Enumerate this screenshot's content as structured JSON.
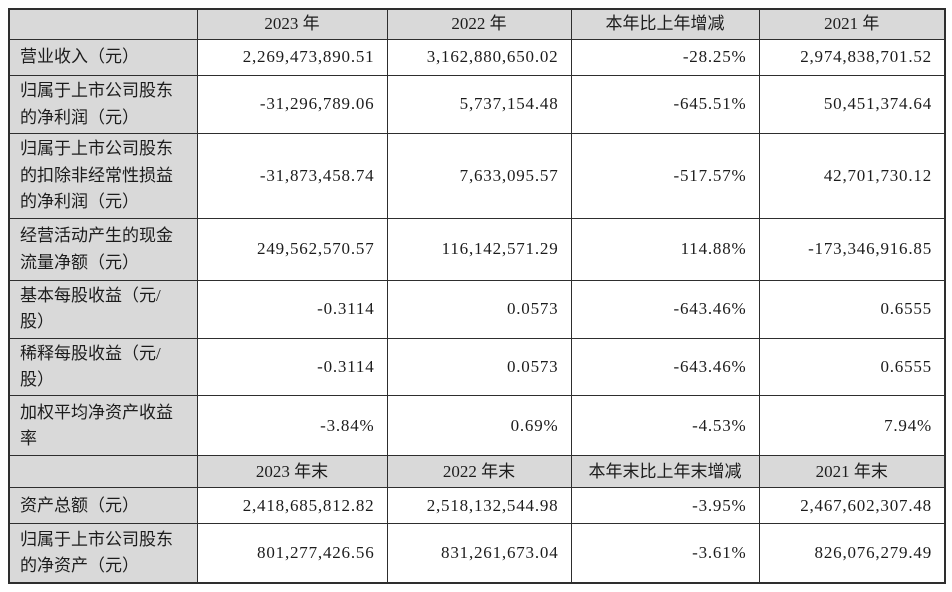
{
  "colors": {
    "header_bg": "#d9d9d9",
    "label_column_bg": "#d9d9d9",
    "cell_bg": "#ffffff",
    "border": "#2e2e2e",
    "text": "#1c1c1c"
  },
  "table": {
    "period_header": {
      "corner": "",
      "col_2023": "2023 年",
      "col_2022": "2022 年",
      "col_change": "本年比上年增减",
      "col_2021": "2021 年"
    },
    "period_rows": [
      {
        "label": "营业收入（元）",
        "values": [
          "2,269,473,890.51",
          "3,162,880,650.02",
          "-28.25%",
          "2,974,838,701.52"
        ]
      },
      {
        "label": "归属于上市公司股东的净利润（元）",
        "values": [
          "-31,296,789.06",
          "5,737,154.48",
          "-645.51%",
          "50,451,374.64"
        ]
      },
      {
        "label": "归属于上市公司股东的扣除非经常性损益的净利润（元）",
        "values": [
          "-31,873,458.74",
          "7,633,095.57",
          "-517.57%",
          "42,701,730.12"
        ]
      },
      {
        "label": "经营活动产生的现金流量净额（元）",
        "values": [
          "249,562,570.57",
          "116,142,571.29",
          "114.88%",
          "-173,346,916.85"
        ]
      },
      {
        "label": "基本每股收益（元/股）",
        "values": [
          "-0.3114",
          "0.0573",
          "-643.46%",
          "0.6555"
        ]
      },
      {
        "label": "稀释每股收益（元/股）",
        "values": [
          "-0.3114",
          "0.0573",
          "-643.46%",
          "0.6555"
        ]
      },
      {
        "label": "加权平均净资产收益率",
        "values": [
          "-3.84%",
          "0.69%",
          "-4.53%",
          "7.94%"
        ]
      }
    ],
    "eop_header": {
      "corner": "",
      "col_2023": "2023 年末",
      "col_2022": "2022 年末",
      "col_change": "本年末比上年末增减",
      "col_2021": "2021 年末"
    },
    "eop_rows": [
      {
        "label": "资产总额（元）",
        "values": [
          "2,418,685,812.82",
          "2,518,132,544.98",
          "-3.95%",
          "2,467,602,307.48"
        ]
      },
      {
        "label": "归属于上市公司股东的净资产（元）",
        "values": [
          "801,277,426.56",
          "831,261,673.04",
          "-3.61%",
          "826,076,279.49"
        ]
      }
    ]
  }
}
